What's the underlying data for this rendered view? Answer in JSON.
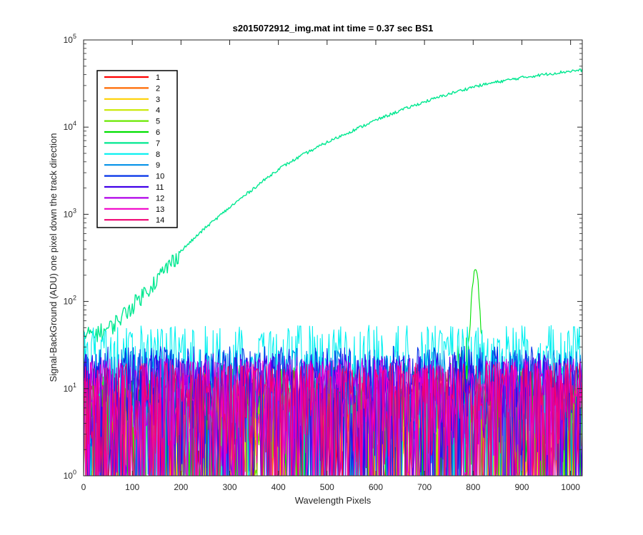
{
  "chart_data": {
    "type": "line",
    "title": "s2015072912_img.mat int time = 0.37 sec   BS1",
    "xlabel": "Wavelength Pixels",
    "ylabel": "Signal-BackGround (ADU) one pixel down the track direction",
    "xlim": [
      0,
      1024
    ],
    "ylim": [
      1,
      100000
    ],
    "yscale": "log",
    "x_ticks": [
      "0",
      "100",
      "200",
      "300",
      "400",
      "500",
      "600",
      "700",
      "800",
      "900",
      "1000"
    ],
    "y_ticks": [
      {
        "base": "10",
        "exp": "0"
      },
      {
        "base": "10",
        "exp": "1"
      },
      {
        "base": "10",
        "exp": "2"
      },
      {
        "base": "10",
        "exp": "3"
      },
      {
        "base": "10",
        "exp": "4"
      },
      {
        "base": "10",
        "exp": "5"
      }
    ],
    "grid": false,
    "legend_position": "top-left",
    "series": [
      {
        "name": "1",
        "color": "#ff0000",
        "noise_level": 8
      },
      {
        "name": "2",
        "color": "#ff6a00",
        "noise_level": 8
      },
      {
        "name": "3",
        "color": "#ffd000",
        "noise_level": 8
      },
      {
        "name": "4",
        "color": "#c8e800",
        "noise_level": 9
      },
      {
        "name": "5",
        "color": "#6ae800",
        "noise_level": 12
      },
      {
        "name": "6",
        "color": "#00e000",
        "noise_level": 14,
        "peak": {
          "x": 805,
          "y": 230
        }
      },
      {
        "name": "7",
        "color": "#00e890",
        "points": [
          [
            0,
            40
          ],
          [
            50,
            48
          ],
          [
            75,
            65
          ],
          [
            100,
            90
          ],
          [
            150,
            180
          ],
          [
            200,
            380
          ],
          [
            250,
            700
          ],
          [
            300,
            1200
          ],
          [
            350,
            2000
          ],
          [
            400,
            3300
          ],
          [
            450,
            4800
          ],
          [
            500,
            6700
          ],
          [
            550,
            9000
          ],
          [
            600,
            12000
          ],
          [
            650,
            15500
          ],
          [
            700,
            19500
          ],
          [
            750,
            24000
          ],
          [
            800,
            29000
          ],
          [
            850,
            33000
          ],
          [
            900,
            37000
          ],
          [
            950,
            40500
          ],
          [
            1000,
            44000
          ],
          [
            1024,
            45000
          ]
        ]
      },
      {
        "name": "8",
        "color": "#00f0f0",
        "noise_level": 38
      },
      {
        "name": "9",
        "color": "#0090e8",
        "noise_level": 20
      },
      {
        "name": "10",
        "color": "#0030e8",
        "noise_level": 22
      },
      {
        "name": "11",
        "color": "#4000e8",
        "noise_level": 18
      },
      {
        "name": "12",
        "color": "#b000e8",
        "noise_level": 16
      },
      {
        "name": "13",
        "color": "#f000c8",
        "noise_level": 15
      },
      {
        "name": "14",
        "color": "#f00070",
        "noise_level": 14
      }
    ]
  }
}
